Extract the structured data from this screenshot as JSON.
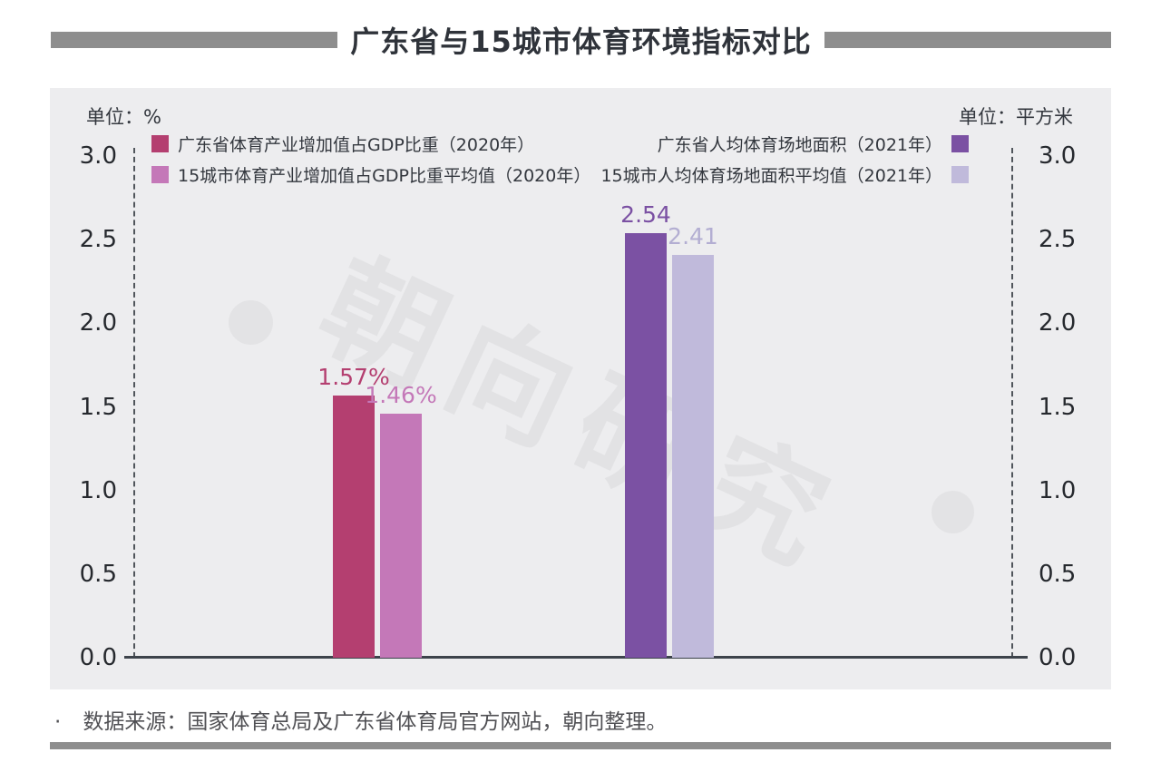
{
  "title": "广东省与15城市体育环境指标对比",
  "watermark": {
    "text": "朝向研究"
  },
  "source_note": {
    "bullet": "·",
    "text": "数据来源：国家体育总局及广东省体育局官方网站，朝向整理。"
  },
  "colors": {
    "header_rule": "#8e8e8e",
    "panel_background": "#ededef",
    "axis_line": "#3d434b",
    "watermark": "#e2e2e4"
  },
  "chart_data": {
    "type": "bar",
    "title": "广东省与15城市体育环境指标对比",
    "grid": false,
    "legend_position": "top",
    "left_axis": {
      "unit_label": "单位：%",
      "range": [
        0,
        3.0
      ],
      "ticks": [
        "3.0",
        "2.5",
        "2.0",
        "1.5",
        "1.0",
        "0.5",
        "0.0"
      ]
    },
    "right_axis": {
      "unit_label": "单位：平方米",
      "range": [
        0,
        3.0
      ],
      "ticks": [
        "3.0",
        "2.5",
        "2.0",
        "1.5",
        "1.0",
        "0.5",
        "0.0"
      ]
    },
    "series": [
      {
        "name": "广东省体育产业增加值占GDP比重（2020年）",
        "value": 1.57,
        "label": "1.57%",
        "axis": "left",
        "color": "#b43f70",
        "label_color": "#b43f70"
      },
      {
        "name": "15城市体育产业增加值占GDP比重平均值（2020年）",
        "value": 1.46,
        "label": "1.46%",
        "axis": "left",
        "color": "#c478b8",
        "label_color": "#c478b8"
      },
      {
        "name": "广东省人均体育场地面积（2021年）",
        "value": 2.54,
        "label": "2.54",
        "axis": "right",
        "color": "#7b51a3",
        "label_color": "#7b51a3"
      },
      {
        "name": "15城市人均体育场地面积平均值（2021年）",
        "value": 2.41,
        "label": "2.41",
        "axis": "right",
        "color": "#c0badb",
        "label_color": "#b3aed2"
      }
    ]
  }
}
